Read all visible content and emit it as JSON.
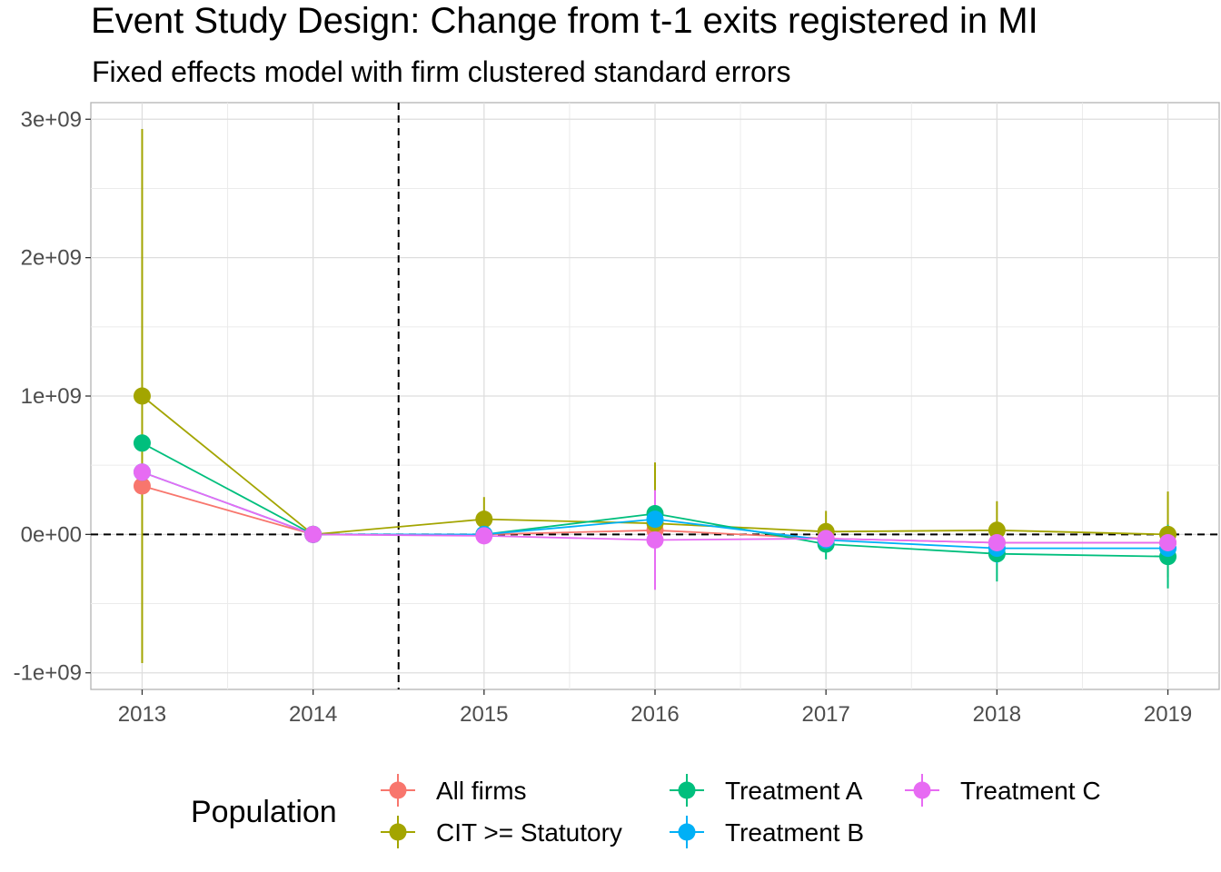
{
  "chart_data": {
    "type": "line",
    "title": "Event Study Design: Change from t-1 exits registered in MI",
    "subtitle": "Fixed effects model with firm clustered standard errors",
    "xlabel": "",
    "ylabel": "",
    "x": [
      2013,
      2014,
      2015,
      2016,
      2017,
      2018,
      2019
    ],
    "x_tick_labels": [
      "2013",
      "2014",
      "2015",
      "2016",
      "2017",
      "2018",
      "2019"
    ],
    "xlim": [
      2012.7,
      2019.3
    ],
    "ylim": [
      -1120000000,
      3120000000
    ],
    "y_ticks": [
      -1000000000,
      0,
      1000000000,
      2000000000,
      3000000000
    ],
    "y_tick_labels": [
      "-1e+09",
      "0e+00",
      "1e+09",
      "2e+09",
      "3e+09"
    ],
    "reference_lines": {
      "vertical_x": 2014.5,
      "horizontal_y": 0
    },
    "grid": true,
    "legend": {
      "title": "Population",
      "position": "bottom"
    },
    "series": [
      {
        "name": "All firms",
        "color": "#F8766D",
        "values": [
          350000000,
          0,
          0,
          30000000,
          -30000000,
          -60000000,
          -60000000
        ],
        "lower": [
          350000000,
          0,
          -20000000,
          -100000000,
          -80000000,
          -120000000,
          -150000000
        ],
        "upper": [
          350000000,
          0,
          20000000,
          160000000,
          20000000,
          0,
          30000000
        ]
      },
      {
        "name": "CIT >= Statutory",
        "color": "#A3A500",
        "values": [
          1000000000,
          0,
          110000000,
          80000000,
          20000000,
          30000000,
          0
        ],
        "lower": [
          -930000000,
          0,
          -50000000,
          -350000000,
          -130000000,
          -170000000,
          -310000000
        ],
        "upper": [
          2930000000,
          0,
          270000000,
          520000000,
          170000000,
          240000000,
          310000000
        ]
      },
      {
        "name": "Treatment A",
        "color": "#00BF7D",
        "values": [
          660000000,
          0,
          0,
          150000000,
          -70000000,
          -140000000,
          -160000000
        ],
        "lower": [
          660000000,
          0,
          -20000000,
          70000000,
          -180000000,
          -340000000,
          -390000000
        ],
        "upper": [
          660000000,
          0,
          20000000,
          230000000,
          40000000,
          60000000,
          70000000
        ]
      },
      {
        "name": "Treatment B",
        "color": "#00B0F6",
        "values": [
          450000000,
          0,
          0,
          110000000,
          -40000000,
          -100000000,
          -100000000
        ],
        "lower": [
          450000000,
          0,
          -20000000,
          20000000,
          -110000000,
          -210000000,
          -220000000
        ],
        "upper": [
          450000000,
          0,
          20000000,
          200000000,
          30000000,
          10000000,
          20000000
        ]
      },
      {
        "name": "Treatment C",
        "color": "#E76BF3",
        "values": [
          450000000,
          0,
          -10000000,
          -40000000,
          -30000000,
          -60000000,
          -60000000
        ],
        "lower": [
          450000000,
          0,
          -40000000,
          -400000000,
          -100000000,
          -150000000,
          -160000000
        ],
        "upper": [
          450000000,
          0,
          20000000,
          320000000,
          40000000,
          30000000,
          40000000
        ]
      }
    ]
  }
}
